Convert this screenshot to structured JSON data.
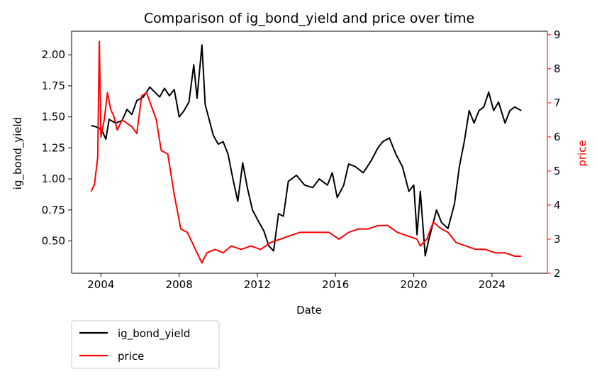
{
  "chart_data": {
    "type": "line",
    "title": "Comparison of ig_bond_yield and price over time",
    "xlabel": "Date",
    "ylabel_left": "ig_bond_yield",
    "ylabel_right": "price",
    "x_ticks": [
      "2004",
      "2008",
      "2012",
      "2016",
      "2020",
      "2024"
    ],
    "y_left_ticks": [
      "0.50",
      "0.75",
      "1.00",
      "1.25",
      "1.50",
      "1.75",
      "2.00"
    ],
    "y_right_ticks": [
      "2",
      "3",
      "4",
      "5",
      "6",
      "7",
      "8",
      "9"
    ],
    "xlim": [
      "2002-07",
      "2026-11"
    ],
    "ylim_left": [
      0.24,
      2.19
    ],
    "ylim_right": [
      2.0,
      9.1
    ],
    "grid": false,
    "legend_position": "below-left",
    "colors": {
      "ig_bond_yield": "#000000",
      "price": "#ff0000"
    },
    "series": [
      {
        "name": "ig_bond_yield",
        "axis": "left",
        "points": [
          [
            "2003-07",
            1.43
          ],
          [
            "2003-10",
            1.42
          ],
          [
            "2003-12",
            1.41
          ],
          [
            "2004-02",
            1.38
          ],
          [
            "2004-04",
            1.32
          ],
          [
            "2004-06",
            1.48
          ],
          [
            "2004-10",
            1.45
          ],
          [
            "2005-02",
            1.47
          ],
          [
            "2005-05",
            1.56
          ],
          [
            "2005-08",
            1.52
          ],
          [
            "2005-11",
            1.63
          ],
          [
            "2006-03",
            1.66
          ],
          [
            "2006-07",
            1.74
          ],
          [
            "2006-10",
            1.7
          ],
          [
            "2007-01",
            1.66
          ],
          [
            "2007-04",
            1.73
          ],
          [
            "2007-07",
            1.67
          ],
          [
            "2007-10",
            1.72
          ],
          [
            "2008-01",
            1.5
          ],
          [
            "2008-04",
            1.55
          ],
          [
            "2008-07",
            1.62
          ],
          [
            "2008-10",
            1.92
          ],
          [
            "2008-12",
            1.65
          ],
          [
            "2009-03",
            2.08
          ],
          [
            "2009-05",
            1.6
          ],
          [
            "2009-08",
            1.45
          ],
          [
            "2009-10",
            1.35
          ],
          [
            "2010-01",
            1.28
          ],
          [
            "2010-04",
            1.3
          ],
          [
            "2010-07",
            1.2
          ],
          [
            "2010-10",
            1.0
          ],
          [
            "2011-01",
            0.82
          ],
          [
            "2011-04",
            1.13
          ],
          [
            "2011-07",
            0.92
          ],
          [
            "2011-10",
            0.75
          ],
          [
            "2012-02",
            0.65
          ],
          [
            "2012-05",
            0.58
          ],
          [
            "2012-08",
            0.46
          ],
          [
            "2012-11",
            0.42
          ],
          [
            "2013-02",
            0.72
          ],
          [
            "2013-05",
            0.7
          ],
          [
            "2013-08",
            0.98
          ],
          [
            "2014-01",
            1.03
          ],
          [
            "2014-06",
            0.95
          ],
          [
            "2014-11",
            0.93
          ],
          [
            "2015-03",
            1.0
          ],
          [
            "2015-08",
            0.95
          ],
          [
            "2015-11",
            1.05
          ],
          [
            "2016-02",
            0.85
          ],
          [
            "2016-06",
            0.95
          ],
          [
            "2016-09",
            1.12
          ],
          [
            "2017-01",
            1.1
          ],
          [
            "2017-06",
            1.05
          ],
          [
            "2017-11",
            1.15
          ],
          [
            "2018-03",
            1.25
          ],
          [
            "2018-06",
            1.3
          ],
          [
            "2018-10",
            1.33
          ],
          [
            "2019-02",
            1.2
          ],
          [
            "2019-06",
            1.1
          ],
          [
            "2019-10",
            0.9
          ],
          [
            "2020-01",
            0.95
          ],
          [
            "2020-03",
            0.55
          ],
          [
            "2020-05",
            0.9
          ],
          [
            "2020-08",
            0.38
          ],
          [
            "2020-10",
            0.5
          ],
          [
            "2021-03",
            0.75
          ],
          [
            "2021-06",
            0.65
          ],
          [
            "2021-10",
            0.6
          ],
          [
            "2022-02",
            0.8
          ],
          [
            "2022-05",
            1.1
          ],
          [
            "2022-08",
            1.3
          ],
          [
            "2022-11",
            1.55
          ],
          [
            "2023-02",
            1.45
          ],
          [
            "2023-05",
            1.55
          ],
          [
            "2023-08",
            1.58
          ],
          [
            "2023-11",
            1.7
          ],
          [
            "2024-02",
            1.55
          ],
          [
            "2024-05",
            1.62
          ],
          [
            "2024-09",
            1.45
          ],
          [
            "2024-12",
            1.55
          ],
          [
            "2025-03",
            1.58
          ],
          [
            "2025-07",
            1.55
          ]
        ]
      },
      {
        "name": "price",
        "axis": "right",
        "points": [
          [
            "2003-07",
            4.4
          ],
          [
            "2003-09",
            4.6
          ],
          [
            "2003-11",
            5.4
          ],
          [
            "2003-12",
            8.8
          ],
          [
            "2004-01",
            6.0
          ],
          [
            "2004-03",
            6.5
          ],
          [
            "2004-05",
            7.3
          ],
          [
            "2004-07",
            6.8
          ],
          [
            "2004-09",
            6.6
          ],
          [
            "2004-11",
            6.2
          ],
          [
            "2005-02",
            6.5
          ],
          [
            "2005-05",
            6.4
          ],
          [
            "2005-08",
            6.3
          ],
          [
            "2005-11",
            6.1
          ],
          [
            "2006-02",
            7.2
          ],
          [
            "2006-05",
            7.3
          ],
          [
            "2006-08",
            6.9
          ],
          [
            "2006-11",
            6.5
          ],
          [
            "2007-02",
            5.6
          ],
          [
            "2007-06",
            5.5
          ],
          [
            "2007-10",
            4.3
          ],
          [
            "2008-02",
            3.3
          ],
          [
            "2008-06",
            3.2
          ],
          [
            "2008-10",
            2.8
          ],
          [
            "2009-03",
            2.3
          ],
          [
            "2009-06",
            2.6
          ],
          [
            "2009-11",
            2.7
          ],
          [
            "2010-04",
            2.6
          ],
          [
            "2010-09",
            2.8
          ],
          [
            "2011-03",
            2.7
          ],
          [
            "2011-09",
            2.8
          ],
          [
            "2012-03",
            2.7
          ],
          [
            "2012-09",
            2.9
          ],
          [
            "2013-03",
            3.0
          ],
          [
            "2013-09",
            3.1
          ],
          [
            "2014-03",
            3.2
          ],
          [
            "2014-09",
            3.2
          ],
          [
            "2015-03",
            3.2
          ],
          [
            "2015-09",
            3.2
          ],
          [
            "2016-03",
            3.0
          ],
          [
            "2016-09",
            3.2
          ],
          [
            "2017-03",
            3.3
          ],
          [
            "2017-09",
            3.3
          ],
          [
            "2018-03",
            3.4
          ],
          [
            "2018-09",
            3.4
          ],
          [
            "2019-03",
            3.2
          ],
          [
            "2019-09",
            3.1
          ],
          [
            "2020-03",
            3.0
          ],
          [
            "2020-05",
            2.8
          ],
          [
            "2020-09",
            3.0
          ],
          [
            "2021-01",
            3.5
          ],
          [
            "2021-06",
            3.3
          ],
          [
            "2021-10",
            3.2
          ],
          [
            "2022-03",
            2.9
          ],
          [
            "2022-09",
            2.8
          ],
          [
            "2023-03",
            2.7
          ],
          [
            "2023-09",
            2.7
          ],
          [
            "2024-03",
            2.6
          ],
          [
            "2024-09",
            2.6
          ],
          [
            "2025-03",
            2.5
          ],
          [
            "2025-07",
            2.5
          ]
        ]
      }
    ]
  }
}
